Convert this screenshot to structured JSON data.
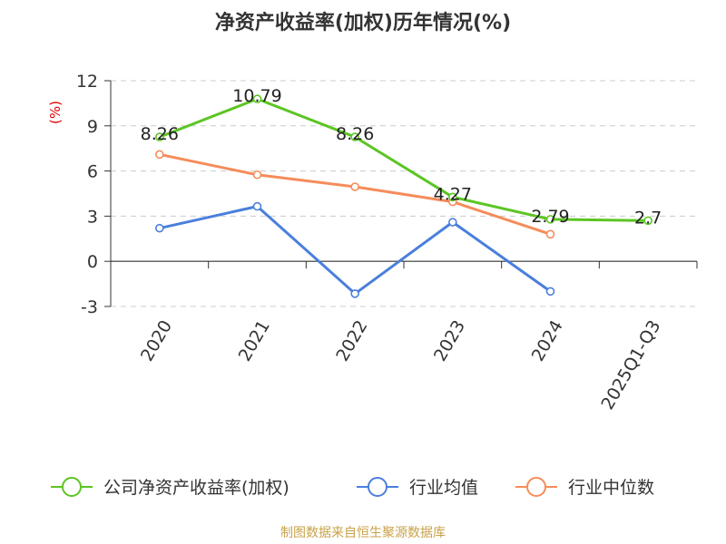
{
  "chart_data": {
    "type": "line",
    "title": "净资产收益率(加权)历年情况(%)",
    "ylabel": "(%)",
    "xlabel": "",
    "categories": [
      "2020",
      "2021",
      "2022",
      "2023",
      "2024",
      "2025Q1-Q3"
    ],
    "ylim": [
      -3,
      12
    ],
    "yticks": [
      12,
      9,
      6,
      3,
      0,
      -3
    ],
    "series": [
      {
        "name": "公司净资产收益率(加权)",
        "color": "#5cc523",
        "values": [
          8.26,
          10.79,
          8.26,
          4.27,
          2.79,
          2.7
        ],
        "labels": [
          "8.26",
          "10.79",
          "8.26",
          "4.27",
          "2.79",
          "2.7"
        ]
      },
      {
        "name": "行业均值",
        "color": "#4a7fdc",
        "values": [
          2.2,
          3.65,
          -2.15,
          2.6,
          -2.0,
          null
        ]
      },
      {
        "name": "行业中位数",
        "color": "#f58c5a",
        "values": [
          7.1,
          5.75,
          4.95,
          3.95,
          1.8,
          null
        ]
      }
    ],
    "grid": true,
    "legend_position": "bottom"
  },
  "footer": {
    "source": "制图数据来自恒生聚源数据库"
  }
}
